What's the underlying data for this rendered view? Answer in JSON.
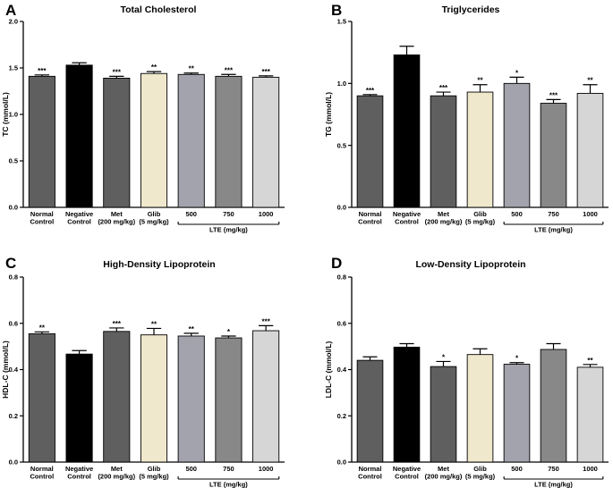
{
  "colors": {
    "normal_control": "#5f5f5f",
    "negative_control": "#000000",
    "met": "#5f5f5f",
    "glib": "#efe8cd",
    "lte_500": "#a3a3ad",
    "lte_750": "#888888",
    "lte_1000": "#d6d6d6"
  },
  "group_label": "LTE (mg/kg)",
  "chart_data": [
    {
      "panel": "A",
      "type": "bar",
      "title": "Total Cholesterol",
      "ylabel": "TC (mmol/L)",
      "ylim": [
        0,
        2.0
      ],
      "yticks": [
        "0.0",
        "0.5",
        "1.0",
        "1.5",
        "2.0"
      ],
      "categories": [
        [
          "Normal",
          "Control"
        ],
        [
          "Negative",
          "Control"
        ],
        [
          "Met",
          "(200 mg/kg)"
        ],
        [
          "Glib",
          "(5 mg/kg)"
        ],
        [
          "500"
        ],
        [
          "750"
        ],
        [
          "1000"
        ]
      ],
      "values": [
        1.41,
        1.53,
        1.39,
        1.44,
        1.43,
        1.41,
        1.4
      ],
      "errors": [
        0.015,
        0.025,
        0.02,
        0.02,
        0.015,
        0.02,
        0.015
      ],
      "significance": [
        "***",
        "",
        "***",
        "**",
        "**",
        "***",
        "***"
      ]
    },
    {
      "panel": "B",
      "type": "bar",
      "title": "Triglycerides",
      "ylabel": "TG (mmol/L)",
      "ylim": [
        0,
        1.5
      ],
      "yticks": [
        "0.0",
        "0.5",
        "1.0",
        "1.5"
      ],
      "categories": [
        [
          "Normal",
          "Control"
        ],
        [
          "Negative",
          "Control"
        ],
        [
          "Met",
          "(200 mg/kg)"
        ],
        [
          "Glib",
          "(5 mg/kg)"
        ],
        [
          "500"
        ],
        [
          "750"
        ],
        [
          "1000"
        ]
      ],
      "values": [
        0.9,
        1.23,
        0.9,
        0.93,
        1.0,
        0.84,
        0.92
      ],
      "errors": [
        0.01,
        0.07,
        0.03,
        0.06,
        0.05,
        0.03,
        0.07
      ],
      "significance": [
        "***",
        "",
        "***",
        "**",
        "*",
        "***",
        "**"
      ]
    },
    {
      "panel": "C",
      "type": "bar",
      "title": "High-Density Lipoprotein",
      "ylabel": "HDL-C (mmol/L)",
      "ylim": [
        0,
        0.8
      ],
      "yticks": [
        "0.0",
        "0.2",
        "0.4",
        "0.6",
        "0.8"
      ],
      "categories": [
        [
          "Normal",
          "Control"
        ],
        [
          "Negative",
          "Control"
        ],
        [
          "Met",
          "(200 mg/kg)"
        ],
        [
          "Glib",
          "(5 mg/kg)"
        ],
        [
          "500"
        ],
        [
          "750"
        ],
        [
          "1000"
        ]
      ],
      "values": [
        0.555,
        0.467,
        0.565,
        0.55,
        0.545,
        0.537,
        0.568
      ],
      "errors": [
        0.008,
        0.015,
        0.015,
        0.028,
        0.012,
        0.008,
        0.022
      ],
      "significance": [
        "**",
        "",
        "***",
        "**",
        "**",
        "*",
        "***"
      ]
    },
    {
      "panel": "D",
      "type": "bar",
      "title": "Low-Density Lipoprotein",
      "ylabel": "LDL-C (mmol/L)",
      "ylim": [
        0,
        0.8
      ],
      "yticks": [
        "0.0",
        "0.2",
        "0.4",
        "0.6",
        "0.8"
      ],
      "categories": [
        [
          "Normal",
          "Control"
        ],
        [
          "Negative",
          "Control"
        ],
        [
          "Met",
          "(200 mg/kg)"
        ],
        [
          "Glib",
          "(5 mg/kg)"
        ],
        [
          "500"
        ],
        [
          "750"
        ],
        [
          "1000"
        ]
      ],
      "values": [
        0.44,
        0.497,
        0.413,
        0.465,
        0.423,
        0.487,
        0.41
      ],
      "errors": [
        0.015,
        0.015,
        0.022,
        0.025,
        0.007,
        0.025,
        0.012
      ],
      "significance": [
        "",
        "",
        "*",
        "",
        "*",
        "",
        "**"
      ]
    }
  ]
}
